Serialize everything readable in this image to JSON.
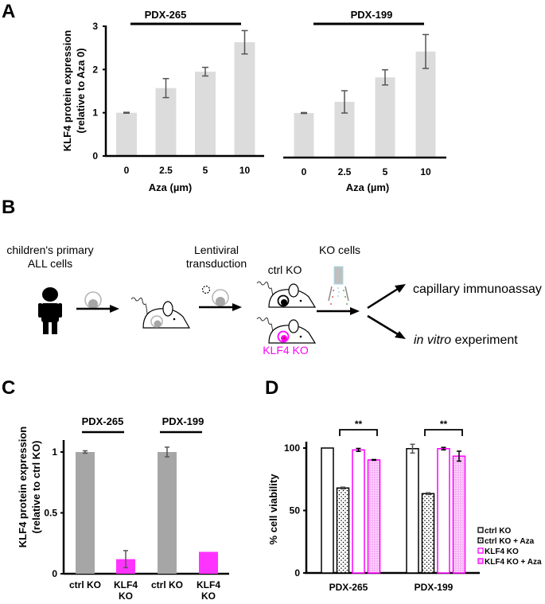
{
  "panels": {
    "A": {
      "letter": "A"
    },
    "B": {
      "letter": "B"
    },
    "C": {
      "letter": "C"
    },
    "D": {
      "letter": "D"
    }
  },
  "chart_data": [
    {
      "id": "A-left",
      "type": "bar",
      "title": "PDX-265",
      "xlabel": "Aza (µm)",
      "ylabel": "KLF4 protein expression",
      "ylabel2": "(relative to Aza 0)",
      "categories": [
        "0",
        "2.5",
        "5",
        "10"
      ],
      "values": [
        1.0,
        1.57,
        1.95,
        2.63
      ],
      "errors": [
        0.01,
        0.22,
        0.1,
        0.27
      ],
      "ylim": [
        0,
        3
      ],
      "yticks": [
        "0",
        "1",
        "2",
        "3"
      ],
      "bar_color": "#dcdcdc"
    },
    {
      "id": "A-right",
      "type": "bar",
      "title": "PDX-199",
      "xlabel": "Aza (µm)",
      "categories": [
        "0",
        "2.5",
        "5",
        "10"
      ],
      "values": [
        1.0,
        1.25,
        1.8,
        2.38
      ],
      "errors": [
        0.01,
        0.25,
        0.17,
        0.38
      ],
      "ylim": [
        0,
        3
      ],
      "bar_color": "#dcdcdc"
    },
    {
      "id": "C",
      "type": "bar",
      "groups": [
        "PDX-265",
        "PDX-199"
      ],
      "ylabel": "KLF4 protein expression",
      "ylabel2": "(relative to ctrl KO)",
      "categories": [
        [
          "ctrl KO"
        ],
        [
          "KLF4",
          "KO"
        ],
        [
          "ctrl KO"
        ],
        [
          "KLF4",
          "KO"
        ]
      ],
      "values": [
        1.0,
        0.12,
        1.0,
        0.18
      ],
      "errors": [
        0.01,
        0.07,
        0.04,
        0
      ],
      "colors": [
        "#a6a6a6",
        "#ff33ff",
        "#a6a6a6",
        "#ff33ff"
      ],
      "ylim": [
        0,
        1.1
      ],
      "yticks": [
        "0",
        "0.5",
        "1"
      ]
    },
    {
      "id": "D",
      "type": "bar",
      "ylabel": "% cell viability",
      "categories": [
        "PDX-265",
        "PDX-199"
      ],
      "series": [
        {
          "name": "ctrl KO",
          "values": [
            100,
            99.5
          ],
          "errors": [
            0,
            3.5
          ],
          "stroke": "#000000",
          "pattern": "none"
        },
        {
          "name": "ctrl KO + Aza",
          "values": [
            68,
            63.5
          ],
          "errors": [
            0.7,
            0.7
          ],
          "stroke": "#000000",
          "pattern": "dots"
        },
        {
          "name": "KLF4 KO",
          "values": [
            98.5,
            99.5
          ],
          "errors": [
            1.2,
            1.0
          ],
          "stroke": "#ff00ff",
          "pattern": "none"
        },
        {
          "name": "KLF4 KO + Aza",
          "values": [
            90.5,
            93.5
          ],
          "errors": [
            0.3,
            4.0
          ],
          "stroke": "#ff00ff",
          "pattern": "pinkdots"
        }
      ],
      "significance": [
        {
          "group": "PDX-265",
          "label": "**"
        },
        {
          "group": "PDX-199",
          "label": "**"
        }
      ],
      "ylim": [
        0,
        100
      ],
      "yticks": [
        "0",
        "50",
        "100"
      ],
      "legend_position": "right"
    }
  ],
  "diagram": {
    "step1_label_line1": "children's primary",
    "step1_label_line2": "ALL cells",
    "step2_label_line1": "Lentiviral",
    "step2_label_line2": "transduction",
    "ctrl_label": "ctrl KO",
    "klf4_label": "KLF4 KO",
    "ko_cells_label": "KO cells",
    "outcome1": "capillary immunoassay",
    "outcome2_italic": "in vitro",
    "outcome2_rest": " experiment",
    "klf4_color": "#ff00ff"
  }
}
